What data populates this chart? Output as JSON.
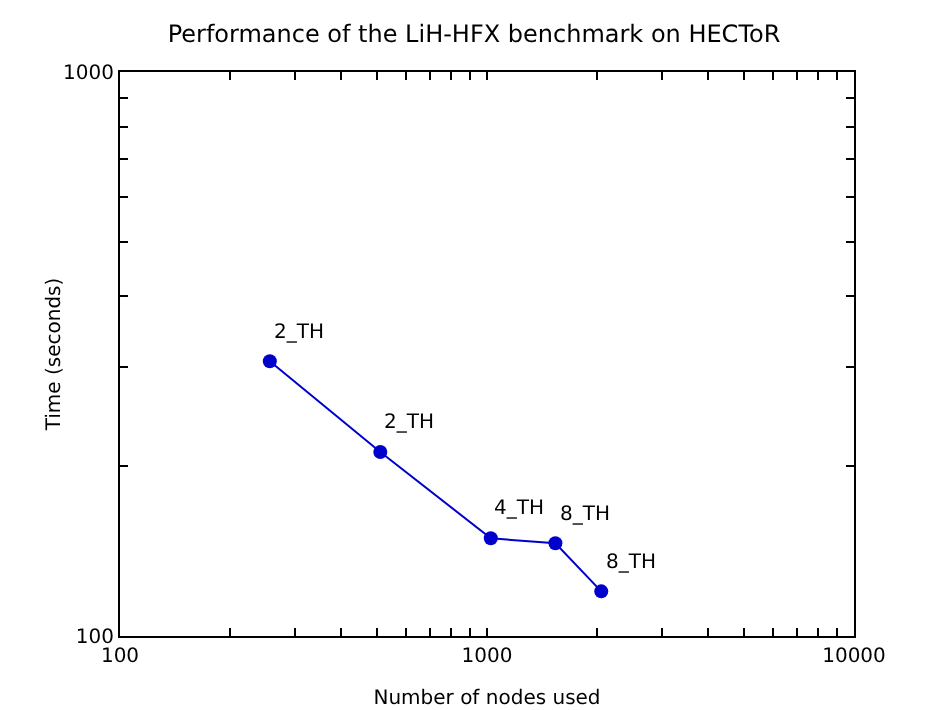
{
  "chart_data": {
    "type": "line",
    "title": "Performance of the LiH-HFX benchmark on HECToR",
    "xlabel": "Number of nodes used",
    "ylabel": "Time (seconds)",
    "x": [
      256,
      512,
      1024,
      1536,
      2048
    ],
    "series": [
      {
        "color": "#0000cc",
        "values": [
          307,
          212,
          149,
          146,
          120
        ]
      }
    ],
    "annotations": [
      {
        "text": "2_TH",
        "x": 256,
        "y": 307
      },
      {
        "text": "2_TH",
        "x": 512,
        "y": 212
      },
      {
        "text": "4_TH",
        "x": 1024,
        "y": 149
      },
      {
        "text": "8_TH",
        "x": 1536,
        "y": 146
      },
      {
        "text": "8_TH",
        "x": 2048,
        "y": 120
      }
    ],
    "log": "xy",
    "xlim": [
      100,
      10000
    ],
    "ylim": [
      100,
      1000
    ],
    "xticks": [
      100,
      {
        "value": 200,
        "label": null
      },
      {
        "value": 300,
        "label": null
      },
      {
        "value": 400,
        "label": null
      },
      {
        "value": 500,
        "label": null
      },
      {
        "value": 600,
        "label": null
      },
      {
        "value": 700,
        "label": null
      },
      {
        "value": 800,
        "label": null
      },
      {
        "value": 900,
        "label": null
      },
      1000,
      {
        "value": 2000,
        "label": null
      },
      {
        "value": 3000,
        "label": null
      },
      {
        "value": 4000,
        "label": null
      },
      {
        "value": 5000,
        "label": null
      },
      {
        "value": 6000,
        "label": null
      },
      {
        "value": 7000,
        "label": null
      },
      {
        "value": 8000,
        "label": null
      },
      {
        "value": 9000,
        "label": null
      },
      10000
    ],
    "yticks": [
      100,
      {
        "value": 200,
        "label": null
      },
      {
        "value": 300,
        "label": null
      },
      {
        "value": 400,
        "label": null
      },
      {
        "value": 500,
        "label": null
      },
      {
        "value": 600,
        "label": null
      },
      {
        "value": 700,
        "label": null
      },
      {
        "value": 800,
        "label": null
      },
      {
        "value": 900,
        "label": null
      },
      1000
    ],
    "grid": false,
    "marker": "circle",
    "line_style": "solid"
  }
}
